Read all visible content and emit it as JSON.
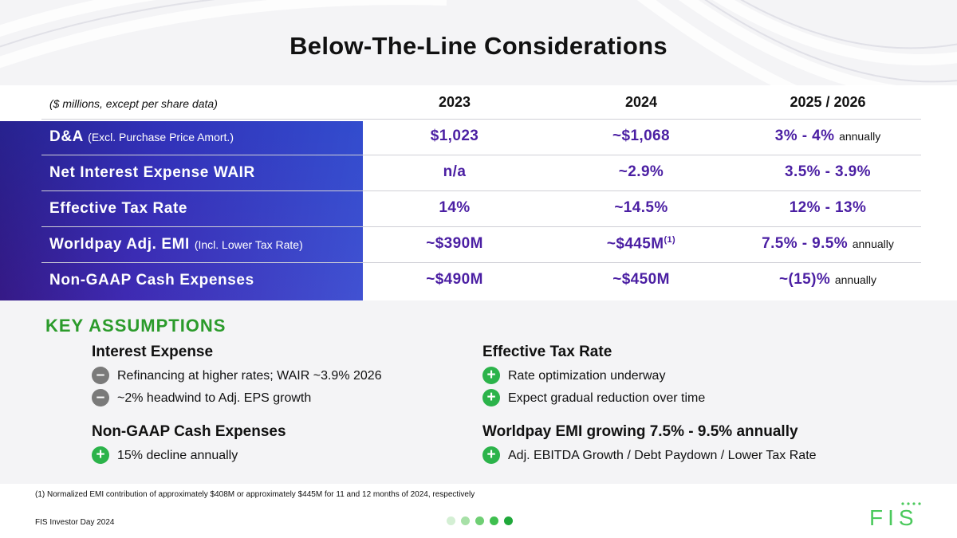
{
  "title": "Below-The-Line Considerations",
  "table": {
    "units_note": "($ millions, except per share data)",
    "columns": [
      "2023",
      "2024",
      "2025 / 2026"
    ],
    "rows": [
      {
        "label": "D&A",
        "sub": "(Excl. Purchase Price Amort.)",
        "v2023": "$1,023",
        "v2024": "~$1,068",
        "v2025": "3% - 4%",
        "v2025_suffix": "annually"
      },
      {
        "label": "Net Interest Expense WAIR",
        "sub": "",
        "v2023": "n/a",
        "v2024": "~2.9%",
        "v2025": "3.5% - 3.9%",
        "v2025_suffix": ""
      },
      {
        "label": "Effective Tax Rate",
        "sub": "",
        "v2023": "14%",
        "v2024": "~14.5%",
        "v2025": "12% - 13%",
        "v2025_suffix": ""
      },
      {
        "label": "Worldpay Adj. EMI",
        "sub": "(Incl. Lower Tax Rate)",
        "v2023": "~$390M",
        "v2024": "~$445M",
        "v2024_sup": "(1)",
        "v2025": "7.5% - 9.5%",
        "v2025_suffix": "annually"
      },
      {
        "label": "Non-GAAP Cash Expenses",
        "sub": "",
        "v2023": "~$490M",
        "v2024": "~$450M",
        "v2025": "~(15)%",
        "v2025_suffix": "annually"
      }
    ]
  },
  "key_assumptions": {
    "title": "KEY ASSUMPTIONS",
    "groups": [
      {
        "title": "Interest Expense",
        "bullets": [
          {
            "sign": "minus",
            "text": "Refinancing at higher rates; WAIR ~3.9% 2026"
          },
          {
            "sign": "minus",
            "text": "~2% headwind to Adj. EPS growth"
          }
        ]
      },
      {
        "title": "Effective Tax Rate",
        "bullets": [
          {
            "sign": "plus",
            "text": "Rate optimization underway"
          },
          {
            "sign": "plus",
            "text": "Expect gradual reduction over time"
          }
        ]
      },
      {
        "title": "Non-GAAP Cash Expenses",
        "bullets": [
          {
            "sign": "plus",
            "text": "15% decline annually"
          }
        ]
      },
      {
        "title": "Worldpay EMI growing 7.5% - 9.5% annually",
        "bullets": [
          {
            "sign": "plus",
            "text": "Adj. EBITDA Growth / Debt Paydown / Lower Tax Rate"
          }
        ]
      }
    ]
  },
  "footnote": "(1) Normalized EMI contribution of approximately $408M or approximately $445M for 11 and 12 months of 2024, respectively",
  "footer": "FIS Investor Day 2024",
  "logo_text": "FIS",
  "colors": {
    "accent_purple": "#4b1fa3",
    "accent_green": "#2bb34a",
    "key_green": "#2b9b2b"
  }
}
